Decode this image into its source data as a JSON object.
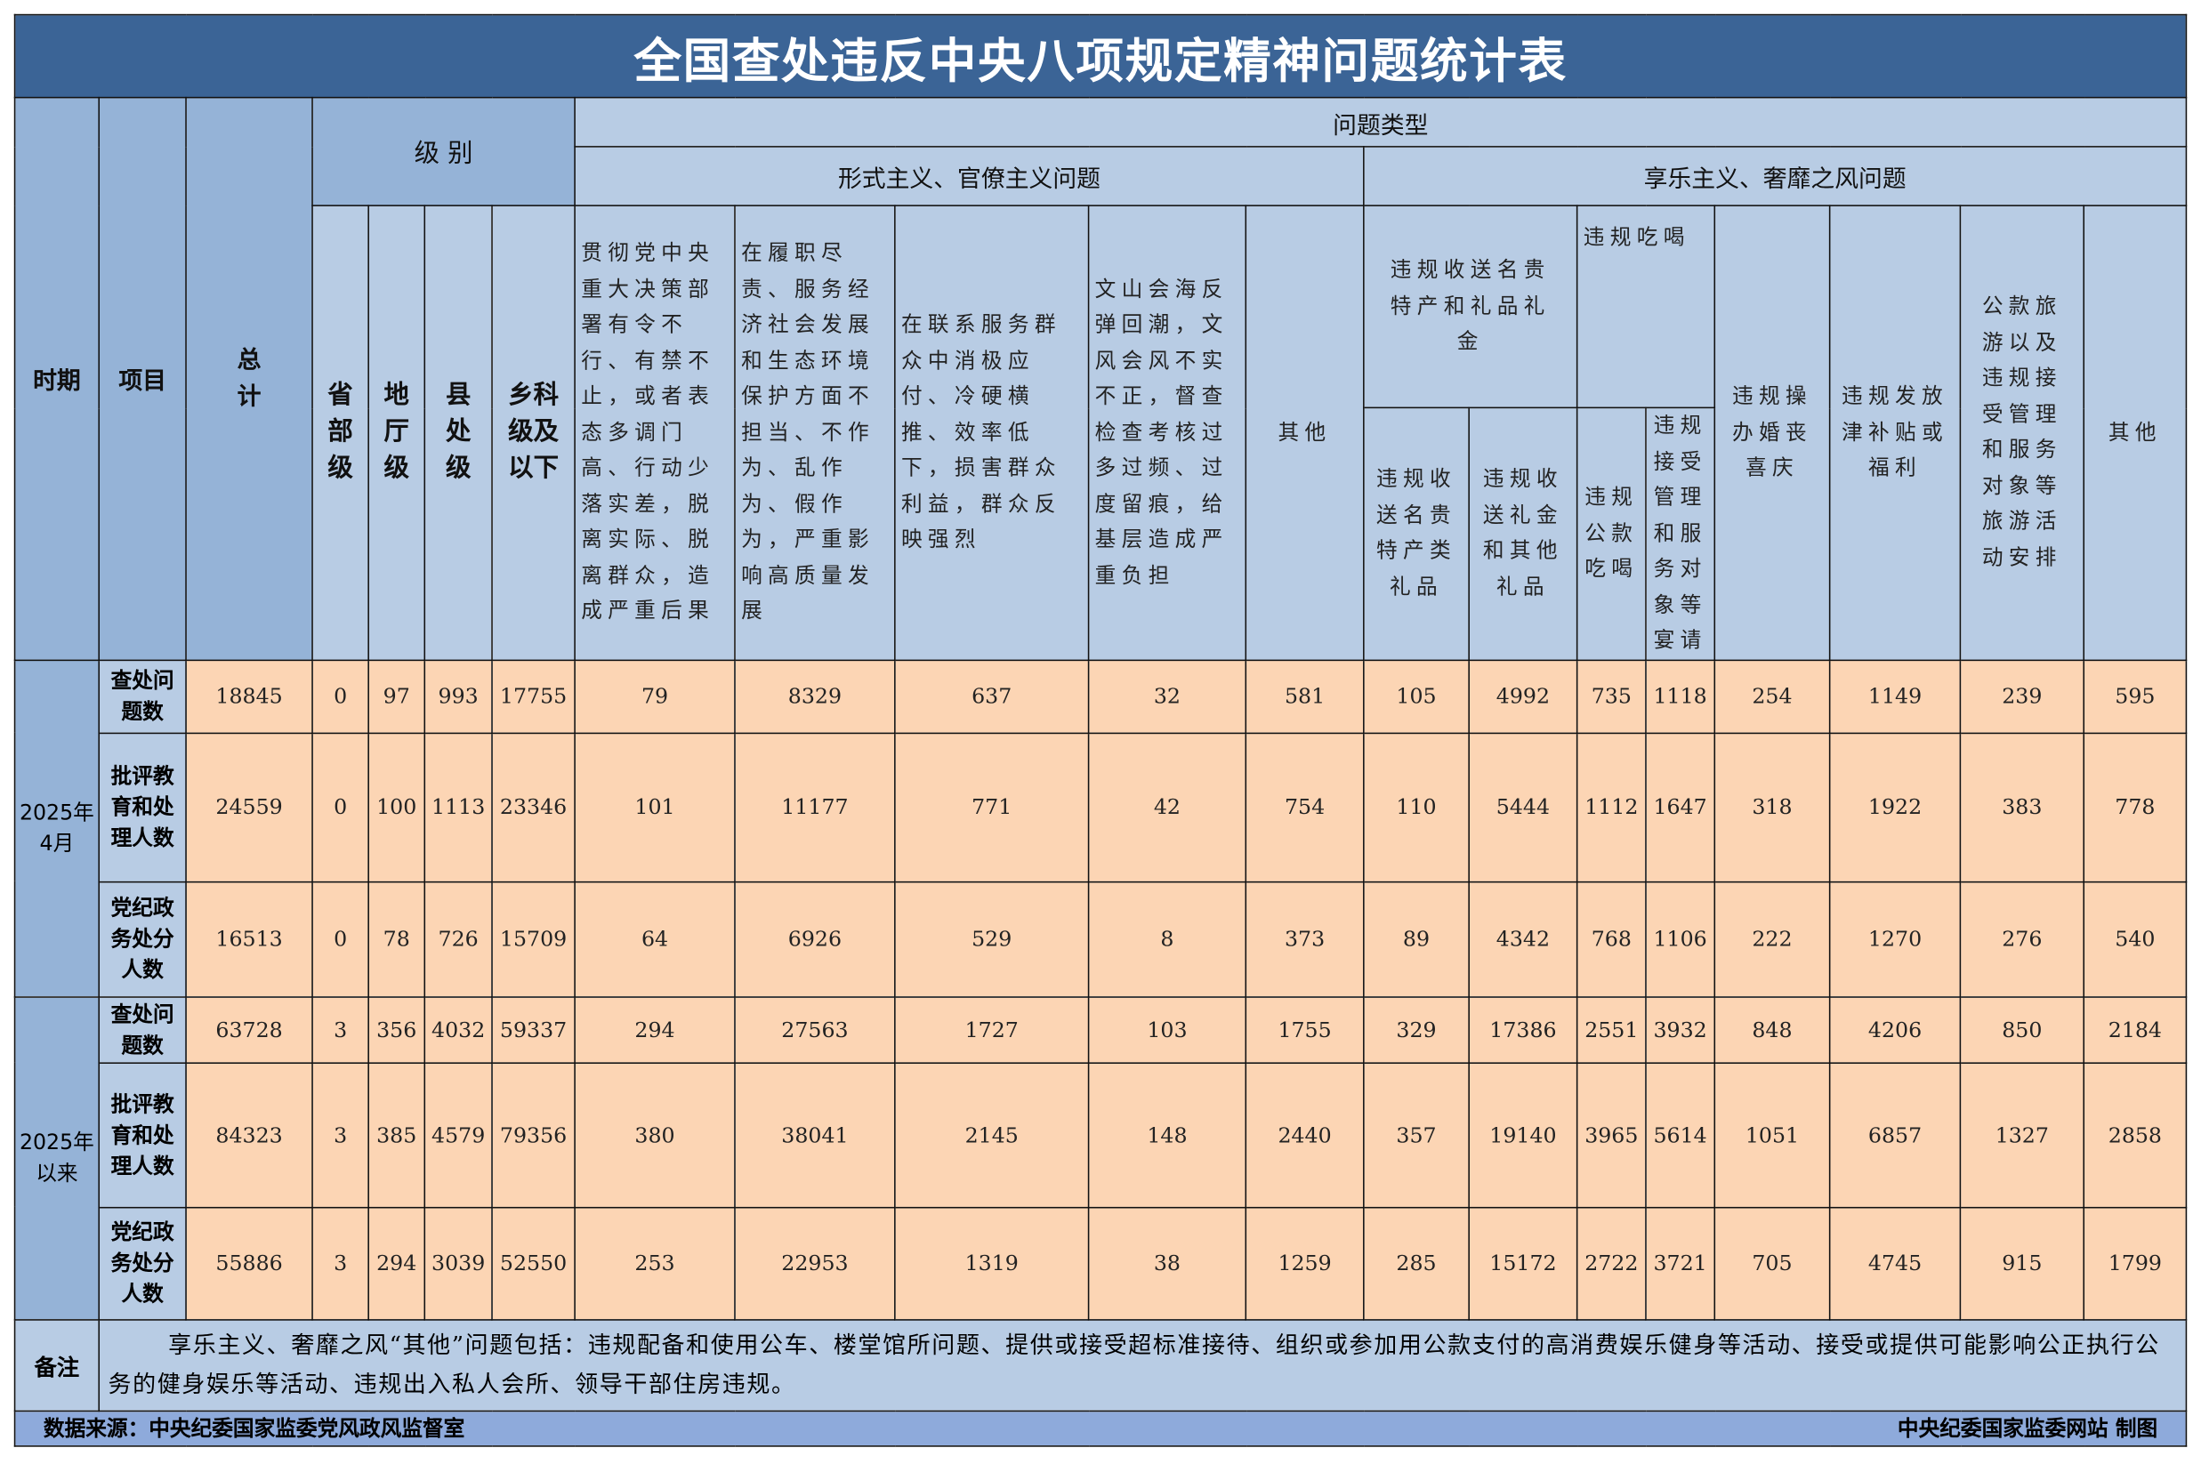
{
  "title": "全国查处违反中央八项规定精神问题统计表",
  "headers": {
    "period": "时期",
    "item": "项目",
    "total": "总计",
    "level": "级 别",
    "problem_type": "问题类型",
    "levels": [
      "省部级",
      "地厅级",
      "县处级",
      "乡科级及以下"
    ],
    "group_formalism": "形式主义、官僚主义问题",
    "group_hedonism": "享乐主义、奢靡之风问题",
    "formalism_cols": [
      "贯彻党中央重大决策部署有令不行、有禁不止，或者表态多调门高、行动少落实差，脱离实际、脱离群众，造成严重后果",
      "在履职尽责、服务经济社会发展和生态环境保护方面不担当、不作为、乱作为、假作为，严重影响高质量发展",
      "在联系服务群众中消极应付、冷硬横推、效率低下，损害群众利益，群众反映强烈",
      "文山会海反弹回潮，文风会风不实不正，督查检查考核过多过频、过度留痕，给基层造成严重负担",
      "其他"
    ],
    "gift_group": "违规收送名贵特产和礼品礼金",
    "gift_cols": [
      "违规收送名贵特产类礼品",
      "违规收送礼金和其他礼品"
    ],
    "dining_group": "违规吃喝",
    "dining_cols": [
      "违规公款吃喝",
      "违规接受管理和服务对象等宴请"
    ],
    "hedonism_other_cols": [
      "违规操办婚丧喜庆",
      "违规发放津补贴或福利",
      "公款旅游以及违规接受管理和服务对象等旅游活动安排",
      "其他"
    ]
  },
  "rows": [
    {
      "period": "2025年4月",
      "item": "查处问题数",
      "values": [
        18845,
        0,
        97,
        993,
        17755,
        79,
        8329,
        637,
        32,
        581,
        105,
        4992,
        735,
        1118,
        254,
        1149,
        239,
        595
      ]
    },
    {
      "period": "2025年4月",
      "item": "批评教育和处理人数",
      "values": [
        24559,
        0,
        100,
        1113,
        23346,
        101,
        11177,
        771,
        42,
        754,
        110,
        5444,
        1112,
        1647,
        318,
        1922,
        383,
        778
      ]
    },
    {
      "period": "2025年4月",
      "item": "党纪政务处分人数",
      "values": [
        16513,
        0,
        78,
        726,
        15709,
        64,
        6926,
        529,
        8,
        373,
        89,
        4342,
        768,
        1106,
        222,
        1270,
        276,
        540
      ]
    },
    {
      "period": "2025年以来",
      "item": "查处问题数",
      "values": [
        63728,
        3,
        356,
        4032,
        59337,
        294,
        27563,
        1727,
        103,
        1755,
        329,
        17386,
        2551,
        3932,
        848,
        4206,
        850,
        2184
      ]
    },
    {
      "period": "2025年以来",
      "item": "批评教育和处理人数",
      "values": [
        84323,
        3,
        385,
        4579,
        79356,
        380,
        38041,
        2145,
        148,
        2440,
        357,
        19140,
        3965,
        5614,
        1051,
        6857,
        1327,
        2858
      ]
    },
    {
      "period": "2025年以来",
      "item": "党纪政务处分人数",
      "values": [
        55886,
        3,
        294,
        3039,
        52550,
        253,
        22953,
        1319,
        38,
        1259,
        285,
        15172,
        2722,
        3721,
        705,
        4745,
        915,
        1799
      ]
    }
  ],
  "note": {
    "label": "备注",
    "text": "享乐主义、奢靡之风“其他”问题包括：违规配备和使用公车、楼堂馆所问题、提供或接受超标准接待、组织或参加用公款支付的高消费娱乐健身等活动、接受或提供可能影响公正执行公务的健身娱乐等活动、违规出入私人会所、领导干部住房违规。"
  },
  "footer": {
    "source": "数据来源：中央纪委国家监委党风政风监督室",
    "credit": "中央纪委国家监委网站 制图"
  },
  "colors": {
    "title_bg": "#3b6496",
    "header_bg": "#b8cce4",
    "side_bg": "#95b3d7",
    "data_bg": "#fcd5b4",
    "footer_bg": "#8eaadb"
  }
}
